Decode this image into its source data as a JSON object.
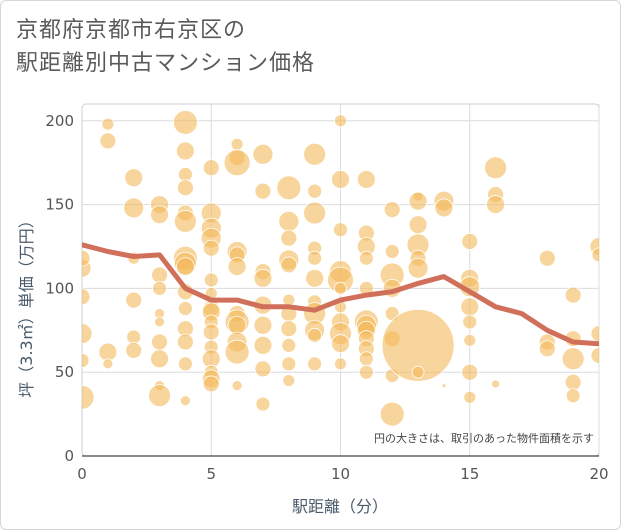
{
  "title_lines": [
    "京都府京都市右京区の",
    "駅距離別中古マンション価格"
  ],
  "chart_data": {
    "type": "scatter",
    "xlabel": "駅距離（分）",
    "ylabel": "坪（3.3㎡）単価（万円）",
    "xlim": [
      0,
      20
    ],
    "ylim": [
      0,
      210
    ],
    "xticks": [
      0,
      5,
      10,
      15,
      20
    ],
    "yticks": [
      0,
      50,
      100,
      150,
      200
    ],
    "grid": true,
    "annotation": "円の大きさは、取引のあった物件面積を示す",
    "bubble_color": "#f3b95a",
    "line_color": "#d0705a",
    "bubbles": [
      {
        "x": 0,
        "y": 35,
        "s": 12
      },
      {
        "x": 0,
        "y": 57,
        "s": 7
      },
      {
        "x": 0,
        "y": 73,
        "s": 10
      },
      {
        "x": 0,
        "y": 95,
        "s": 8
      },
      {
        "x": 0,
        "y": 112,
        "s": 9
      },
      {
        "x": 0,
        "y": 118,
        "s": 8
      },
      {
        "x": 1,
        "y": 188,
        "s": 8
      },
      {
        "x": 1,
        "y": 198,
        "s": 6
      },
      {
        "x": 1,
        "y": 62,
        "s": 9
      },
      {
        "x": 1,
        "y": 55,
        "s": 5
      },
      {
        "x": 2,
        "y": 166,
        "s": 9
      },
      {
        "x": 2,
        "y": 148,
        "s": 10
      },
      {
        "x": 2,
        "y": 118,
        "s": 6
      },
      {
        "x": 2,
        "y": 93,
        "s": 8
      },
      {
        "x": 2,
        "y": 71,
        "s": 7
      },
      {
        "x": 2,
        "y": 63,
        "s": 8
      },
      {
        "x": 3,
        "y": 150,
        "s": 9
      },
      {
        "x": 3,
        "y": 144,
        "s": 9
      },
      {
        "x": 3,
        "y": 108,
        "s": 8
      },
      {
        "x": 3,
        "y": 100,
        "s": 7
      },
      {
        "x": 3,
        "y": 85,
        "s": 5
      },
      {
        "x": 3,
        "y": 80,
        "s": 5
      },
      {
        "x": 3,
        "y": 68,
        "s": 8
      },
      {
        "x": 3,
        "y": 58,
        "s": 9
      },
      {
        "x": 3,
        "y": 42,
        "s": 5
      },
      {
        "x": 3,
        "y": 36,
        "s": 11
      },
      {
        "x": 4,
        "y": 199,
        "s": 12
      },
      {
        "x": 4,
        "y": 182,
        "s": 9
      },
      {
        "x": 4,
        "y": 168,
        "s": 7
      },
      {
        "x": 4,
        "y": 160,
        "s": 8
      },
      {
        "x": 4,
        "y": 145,
        "s": 8
      },
      {
        "x": 4,
        "y": 140,
        "s": 11
      },
      {
        "x": 4,
        "y": 118,
        "s": 12
      },
      {
        "x": 4,
        "y": 115,
        "s": 11
      },
      {
        "x": 4,
        "y": 113,
        "s": 9
      },
      {
        "x": 4,
        "y": 98,
        "s": 8
      },
      {
        "x": 4,
        "y": 88,
        "s": 7
      },
      {
        "x": 4,
        "y": 76,
        "s": 8
      },
      {
        "x": 4,
        "y": 68,
        "s": 8
      },
      {
        "x": 4,
        "y": 55,
        "s": 7
      },
      {
        "x": 4,
        "y": 33,
        "s": 5
      },
      {
        "x": 5,
        "y": 172,
        "s": 8
      },
      {
        "x": 5,
        "y": 145,
        "s": 10
      },
      {
        "x": 5,
        "y": 136,
        "s": 10
      },
      {
        "x": 5,
        "y": 130,
        "s": 10
      },
      {
        "x": 5,
        "y": 124,
        "s": 8
      },
      {
        "x": 5,
        "y": 105,
        "s": 7
      },
      {
        "x": 5,
        "y": 97,
        "s": 6
      },
      {
        "x": 5,
        "y": 88,
        "s": 8
      },
      {
        "x": 5,
        "y": 86,
        "s": 9
      },
      {
        "x": 5,
        "y": 80,
        "s": 7
      },
      {
        "x": 5,
        "y": 74,
        "s": 8
      },
      {
        "x": 5,
        "y": 65,
        "s": 7
      },
      {
        "x": 5,
        "y": 58,
        "s": 9
      },
      {
        "x": 5,
        "y": 50,
        "s": 7
      },
      {
        "x": 5,
        "y": 46,
        "s": 9
      },
      {
        "x": 5,
        "y": 43,
        "s": 8
      },
      {
        "x": 6,
        "y": 186,
        "s": 6
      },
      {
        "x": 6,
        "y": 178,
        "s": 8
      },
      {
        "x": 6,
        "y": 175,
        "s": 13
      },
      {
        "x": 6,
        "y": 122,
        "s": 10
      },
      {
        "x": 6,
        "y": 120,
        "s": 8
      },
      {
        "x": 6,
        "y": 113,
        "s": 9
      },
      {
        "x": 6,
        "y": 85,
        "s": 8
      },
      {
        "x": 6,
        "y": 80,
        "s": 12
      },
      {
        "x": 6,
        "y": 78,
        "s": 9
      },
      {
        "x": 6,
        "y": 68,
        "s": 10
      },
      {
        "x": 6,
        "y": 62,
        "s": 12
      },
      {
        "x": 6,
        "y": 42,
        "s": 5
      },
      {
        "x": 7,
        "y": 180,
        "s": 10
      },
      {
        "x": 7,
        "y": 158,
        "s": 8
      },
      {
        "x": 7,
        "y": 110,
        "s": 8
      },
      {
        "x": 7,
        "y": 106,
        "s": 9
      },
      {
        "x": 7,
        "y": 90,
        "s": 9
      },
      {
        "x": 7,
        "y": 78,
        "s": 9
      },
      {
        "x": 7,
        "y": 66,
        "s": 9
      },
      {
        "x": 7,
        "y": 52,
        "s": 8
      },
      {
        "x": 7,
        "y": 31,
        "s": 7
      },
      {
        "x": 8,
        "y": 160,
        "s": 12
      },
      {
        "x": 8,
        "y": 140,
        "s": 10
      },
      {
        "x": 8,
        "y": 130,
        "s": 8
      },
      {
        "x": 8,
        "y": 117,
        "s": 10
      },
      {
        "x": 8,
        "y": 114,
        "s": 8
      },
      {
        "x": 8,
        "y": 93,
        "s": 6
      },
      {
        "x": 8,
        "y": 85,
        "s": 8
      },
      {
        "x": 8,
        "y": 76,
        "s": 8
      },
      {
        "x": 8,
        "y": 66,
        "s": 7
      },
      {
        "x": 8,
        "y": 55,
        "s": 7
      },
      {
        "x": 8,
        "y": 45,
        "s": 6
      },
      {
        "x": 9,
        "y": 180,
        "s": 11
      },
      {
        "x": 9,
        "y": 158,
        "s": 7
      },
      {
        "x": 9,
        "y": 145,
        "s": 11
      },
      {
        "x": 9,
        "y": 124,
        "s": 7
      },
      {
        "x": 9,
        "y": 118,
        "s": 7
      },
      {
        "x": 9,
        "y": 106,
        "s": 9
      },
      {
        "x": 9,
        "y": 92,
        "s": 7
      },
      {
        "x": 9,
        "y": 85,
        "s": 11
      },
      {
        "x": 9,
        "y": 75,
        "s": 10
      },
      {
        "x": 9,
        "y": 72,
        "s": 7
      },
      {
        "x": 9,
        "y": 55,
        "s": 7
      },
      {
        "x": 10,
        "y": 200,
        "s": 6
      },
      {
        "x": 10,
        "y": 165,
        "s": 9
      },
      {
        "x": 10,
        "y": 135,
        "s": 7
      },
      {
        "x": 10,
        "y": 110,
        "s": 11
      },
      {
        "x": 10,
        "y": 105,
        "s": 13
      },
      {
        "x": 10,
        "y": 100,
        "s": 6
      },
      {
        "x": 10,
        "y": 89,
        "s": 6
      },
      {
        "x": 10,
        "y": 80,
        "s": 9
      },
      {
        "x": 10,
        "y": 73,
        "s": 11
      },
      {
        "x": 10,
        "y": 67,
        "s": 9
      },
      {
        "x": 10,
        "y": 55,
        "s": 6
      },
      {
        "x": 11,
        "y": 165,
        "s": 9
      },
      {
        "x": 11,
        "y": 133,
        "s": 8
      },
      {
        "x": 11,
        "y": 125,
        "s": 9
      },
      {
        "x": 11,
        "y": 118,
        "s": 7
      },
      {
        "x": 11,
        "y": 100,
        "s": 7
      },
      {
        "x": 11,
        "y": 80,
        "s": 12
      },
      {
        "x": 11,
        "y": 78,
        "s": 10
      },
      {
        "x": 11,
        "y": 75,
        "s": 9
      },
      {
        "x": 11,
        "y": 70,
        "s": 8
      },
      {
        "x": 11,
        "y": 64,
        "s": 8
      },
      {
        "x": 11,
        "y": 58,
        "s": 7
      },
      {
        "x": 11,
        "y": 50,
        "s": 7
      },
      {
        "x": 12,
        "y": 147,
        "s": 8
      },
      {
        "x": 12,
        "y": 122,
        "s": 7
      },
      {
        "x": 12,
        "y": 108,
        "s": 12
      },
      {
        "x": 12,
        "y": 100,
        "s": 9
      },
      {
        "x": 12,
        "y": 85,
        "s": 7
      },
      {
        "x": 12,
        "y": 70,
        "s": 8
      },
      {
        "x": 12,
        "y": 48,
        "s": 7
      },
      {
        "x": 12,
        "y": 25,
        "s": 12
      },
      {
        "x": 13,
        "y": 155,
        "s": 5
      },
      {
        "x": 13,
        "y": 152,
        "s": 9
      },
      {
        "x": 13,
        "y": 138,
        "s": 9
      },
      {
        "x": 13,
        "y": 126,
        "s": 11
      },
      {
        "x": 13,
        "y": 118,
        "s": 8
      },
      {
        "x": 13,
        "y": 112,
        "s": 10
      },
      {
        "x": 13,
        "y": 66,
        "s": 36
      },
      {
        "x": 13,
        "y": 50,
        "s": 6
      },
      {
        "x": 14,
        "y": 152,
        "s": 10
      },
      {
        "x": 14,
        "y": 148,
        "s": 9
      },
      {
        "x": 14,
        "y": 42,
        "s": 2
      },
      {
        "x": 15,
        "y": 128,
        "s": 8
      },
      {
        "x": 15,
        "y": 106,
        "s": 9
      },
      {
        "x": 15,
        "y": 101,
        "s": 10
      },
      {
        "x": 15,
        "y": 89,
        "s": 9
      },
      {
        "x": 15,
        "y": 80,
        "s": 7
      },
      {
        "x": 15,
        "y": 69,
        "s": 6
      },
      {
        "x": 15,
        "y": 50,
        "s": 8
      },
      {
        "x": 15,
        "y": 35,
        "s": 6
      },
      {
        "x": 16,
        "y": 172,
        "s": 11
      },
      {
        "x": 16,
        "y": 156,
        "s": 8
      },
      {
        "x": 16,
        "y": 150,
        "s": 9
      },
      {
        "x": 16,
        "y": 43,
        "s": 4
      },
      {
        "x": 18,
        "y": 118,
        "s": 8
      },
      {
        "x": 18,
        "y": 68,
        "s": 8
      },
      {
        "x": 18,
        "y": 64,
        "s": 8
      },
      {
        "x": 19,
        "y": 96,
        "s": 8
      },
      {
        "x": 19,
        "y": 70,
        "s": 8
      },
      {
        "x": 19,
        "y": 58,
        "s": 11
      },
      {
        "x": 19,
        "y": 44,
        "s": 8
      },
      {
        "x": 19,
        "y": 36,
        "s": 7
      },
      {
        "x": 20,
        "y": 125,
        "s": 9
      },
      {
        "x": 20,
        "y": 120,
        "s": 7
      },
      {
        "x": 20,
        "y": 73,
        "s": 8
      },
      {
        "x": 20,
        "y": 60,
        "s": 8
      }
    ],
    "trend_line": {
      "x": [
        0,
        1,
        2,
        3,
        4,
        5,
        6,
        7,
        8,
        9,
        10,
        11,
        12,
        13,
        14,
        15,
        16,
        17,
        18,
        19,
        20
      ],
      "y": [
        126,
        122,
        119,
        120,
        100,
        93,
        93,
        89,
        89,
        87,
        93,
        96,
        98,
        103,
        107,
        98,
        89,
        85,
        75,
        68,
        67
      ]
    }
  }
}
